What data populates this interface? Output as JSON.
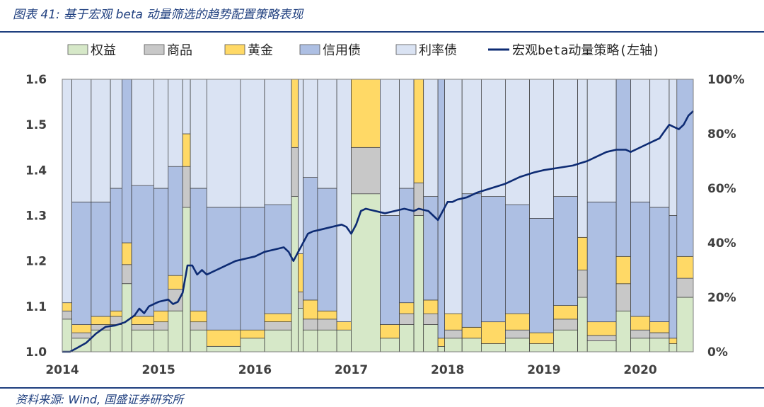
{
  "title": "图表 41: 基于宏观 beta 动量筛选的趋势配置策略表现",
  "source": "资料来源: Wind, 国盛证券研究所",
  "chart_data": {
    "type": "area",
    "x_ticks": [
      "2014",
      "2015",
      "2016",
      "2017",
      "2018",
      "2019",
      "2020"
    ],
    "x_range": [
      2014.0,
      2020.55
    ],
    "y_left": {
      "ticks": [
        "1.0",
        "1.1",
        "1.2",
        "1.3",
        "1.4",
        "1.5",
        "1.6"
      ],
      "range": [
        1.0,
        1.6
      ]
    },
    "y_right": {
      "ticks": [
        "0%",
        "20%",
        "40%",
        "60%",
        "80%",
        "100%"
      ],
      "range": [
        0,
        100
      ]
    },
    "grid": false,
    "legend_position": "top",
    "stacked_series": [
      {
        "name": "权益",
        "color": "#d6e8c8"
      },
      {
        "name": "商品",
        "color": "#c8c8c8"
      },
      {
        "name": "黄金",
        "color": "#ffd966"
      },
      {
        "name": "信用债",
        "color": "#adbfe3"
      },
      {
        "name": "利率债",
        "color": "#dae3f3"
      }
    ],
    "allocation_percent": [
      {
        "start": 2014.0,
        "end": 2014.1,
        "values": [
          12,
          3,
          3,
          0,
          82
        ]
      },
      {
        "start": 2014.1,
        "end": 2014.3,
        "values": [
          5,
          2,
          3,
          45,
          45
        ]
      },
      {
        "start": 2014.3,
        "end": 2014.5,
        "values": [
          8,
          2,
          3,
          42,
          45
        ]
      },
      {
        "start": 2014.5,
        "end": 2014.62,
        "values": [
          10,
          3,
          2,
          45,
          40
        ]
      },
      {
        "start": 2014.62,
        "end": 2014.72,
        "values": [
          25,
          7,
          8,
          60,
          0
        ]
      },
      {
        "start": 2014.72,
        "end": 2014.95,
        "values": [
          8,
          2,
          3,
          48,
          39
        ]
      },
      {
        "start": 2014.95,
        "end": 2015.1,
        "values": [
          8,
          3,
          4,
          45,
          40
        ]
      },
      {
        "start": 2015.1,
        "end": 2015.25,
        "values": [
          15,
          8,
          5,
          40,
          32
        ]
      },
      {
        "start": 2015.25,
        "end": 2015.33,
        "values": [
          53,
          15,
          12,
          0,
          20
        ]
      },
      {
        "start": 2015.33,
        "end": 2015.5,
        "values": [
          8,
          3,
          4,
          45,
          40
        ]
      },
      {
        "start": 2015.5,
        "end": 2015.85,
        "values": [
          2,
          0,
          6,
          45,
          47
        ]
      },
      {
        "start": 2015.85,
        "end": 2016.1,
        "values": [
          5,
          0,
          3,
          45,
          47
        ]
      },
      {
        "start": 2016.1,
        "end": 2016.38,
        "values": [
          8,
          3,
          3,
          40,
          46
        ]
      },
      {
        "start": 2016.38,
        "end": 2016.45,
        "values": [
          57,
          18,
          25,
          0,
          0
        ]
      },
      {
        "start": 2016.45,
        "end": 2016.5,
        "values": [
          16,
          6,
          14,
          0,
          64
        ]
      },
      {
        "start": 2016.5,
        "end": 2016.65,
        "values": [
          8,
          4,
          7,
          45,
          36
        ]
      },
      {
        "start": 2016.65,
        "end": 2016.85,
        "values": [
          8,
          4,
          3,
          45,
          40
        ]
      },
      {
        "start": 2016.85,
        "end": 2017.0,
        "values": [
          8,
          0,
          3,
          0,
          89
        ]
      },
      {
        "start": 2017.0,
        "end": 2017.3,
        "values": [
          58,
          17,
          25,
          0,
          0
        ]
      },
      {
        "start": 2017.3,
        "end": 2017.5,
        "values": [
          5,
          0,
          5,
          40,
          50
        ]
      },
      {
        "start": 2017.5,
        "end": 2017.65,
        "values": [
          10,
          4,
          4,
          42,
          40
        ]
      },
      {
        "start": 2017.65,
        "end": 2017.75,
        "values": [
          50,
          12,
          38,
          0,
          0
        ]
      },
      {
        "start": 2017.75,
        "end": 2017.9,
        "values": [
          10,
          4,
          5,
          38,
          43
        ]
      },
      {
        "start": 2017.9,
        "end": 2017.97,
        "values": [
          2,
          0,
          3,
          95,
          0
        ]
      },
      {
        "start": 2017.97,
        "end": 2018.15,
        "values": [
          5,
          3,
          6,
          0,
          86
        ]
      },
      {
        "start": 2018.15,
        "end": 2018.35,
        "values": [
          5,
          0,
          4,
          49,
          42
        ]
      },
      {
        "start": 2018.35,
        "end": 2018.6,
        "values": [
          3,
          0,
          8,
          46,
          43
        ]
      },
      {
        "start": 2018.6,
        "end": 2018.85,
        "values": [
          5,
          3,
          6,
          40,
          46
        ]
      },
      {
        "start": 2018.85,
        "end": 2019.1,
        "values": [
          3,
          0,
          4,
          42,
          51
        ]
      },
      {
        "start": 2019.1,
        "end": 2019.35,
        "values": [
          8,
          4,
          5,
          40,
          43
        ]
      },
      {
        "start": 2019.35,
        "end": 2019.45,
        "values": [
          20,
          10,
          12,
          0,
          58
        ]
      },
      {
        "start": 2019.45,
        "end": 2019.75,
        "values": [
          4,
          2,
          5,
          44,
          45
        ]
      },
      {
        "start": 2019.75,
        "end": 2019.9,
        "values": [
          15,
          10,
          10,
          65,
          0
        ]
      },
      {
        "start": 2019.9,
        "end": 2020.1,
        "values": [
          5,
          3,
          5,
          42,
          45
        ]
      },
      {
        "start": 2020.1,
        "end": 2020.3,
        "values": [
          5,
          2,
          4,
          42,
          47
        ]
      },
      {
        "start": 2020.3,
        "end": 2020.38,
        "values": [
          3,
          0,
          2,
          45,
          50
        ]
      },
      {
        "start": 2020.38,
        "end": 2020.55,
        "values": [
          20,
          7,
          8,
          65,
          0
        ]
      }
    ],
    "line_series": {
      "name": "宏观beta动量策略(左轴)",
      "color": "#0d2b73",
      "axis": "left",
      "points": [
        [
          2014.0,
          1.0
        ],
        [
          2014.08,
          1.0
        ],
        [
          2014.15,
          1.008
        ],
        [
          2014.25,
          1.02
        ],
        [
          2014.35,
          1.04
        ],
        [
          2014.45,
          1.055
        ],
        [
          2014.55,
          1.058
        ],
        [
          2014.65,
          1.065
        ],
        [
          2014.75,
          1.08
        ],
        [
          2014.8,
          1.095
        ],
        [
          2014.85,
          1.085
        ],
        [
          2014.9,
          1.1
        ],
        [
          2014.95,
          1.105
        ],
        [
          2015.0,
          1.11
        ],
        [
          2015.1,
          1.115
        ],
        [
          2015.15,
          1.105
        ],
        [
          2015.2,
          1.11
        ],
        [
          2015.25,
          1.13
        ],
        [
          2015.3,
          1.19
        ],
        [
          2015.35,
          1.19
        ],
        [
          2015.4,
          1.17
        ],
        [
          2015.45,
          1.18
        ],
        [
          2015.5,
          1.17
        ],
        [
          2015.6,
          1.18
        ],
        [
          2015.7,
          1.19
        ],
        [
          2015.8,
          1.2
        ],
        [
          2015.9,
          1.205
        ],
        [
          2016.0,
          1.21
        ],
        [
          2016.1,
          1.22
        ],
        [
          2016.2,
          1.225
        ],
        [
          2016.3,
          1.23
        ],
        [
          2016.35,
          1.22
        ],
        [
          2016.4,
          1.2
        ],
        [
          2016.45,
          1.22
        ],
        [
          2016.5,
          1.24
        ],
        [
          2016.55,
          1.26
        ],
        [
          2016.6,
          1.265
        ],
        [
          2016.7,
          1.27
        ],
        [
          2016.8,
          1.275
        ],
        [
          2016.9,
          1.28
        ],
        [
          2016.95,
          1.275
        ],
        [
          2017.0,
          1.26
        ],
        [
          2017.05,
          1.28
        ],
        [
          2017.1,
          1.31
        ],
        [
          2017.15,
          1.315
        ],
        [
          2017.25,
          1.31
        ],
        [
          2017.35,
          1.305
        ],
        [
          2017.45,
          1.31
        ],
        [
          2017.55,
          1.315
        ],
        [
          2017.65,
          1.31
        ],
        [
          2017.7,
          1.315
        ],
        [
          2017.8,
          1.31
        ],
        [
          2017.85,
          1.3
        ],
        [
          2017.9,
          1.29
        ],
        [
          2017.95,
          1.31
        ],
        [
          2018.0,
          1.33
        ],
        [
          2018.05,
          1.33
        ],
        [
          2018.1,
          1.335
        ],
        [
          2018.2,
          1.34
        ],
        [
          2018.3,
          1.35
        ],
        [
          2018.45,
          1.36
        ],
        [
          2018.6,
          1.37
        ],
        [
          2018.75,
          1.385
        ],
        [
          2018.9,
          1.395
        ],
        [
          2019.0,
          1.4
        ],
        [
          2019.15,
          1.405
        ],
        [
          2019.3,
          1.41
        ],
        [
          2019.45,
          1.42
        ],
        [
          2019.55,
          1.43
        ],
        [
          2019.65,
          1.44
        ],
        [
          2019.75,
          1.445
        ],
        [
          2019.85,
          1.445
        ],
        [
          2019.9,
          1.44
        ],
        [
          2019.95,
          1.445
        ],
        [
          2020.05,
          1.455
        ],
        [
          2020.15,
          1.465
        ],
        [
          2020.2,
          1.47
        ],
        [
          2020.25,
          1.485
        ],
        [
          2020.3,
          1.5
        ],
        [
          2020.35,
          1.495
        ],
        [
          2020.4,
          1.49
        ],
        [
          2020.45,
          1.5
        ],
        [
          2020.5,
          1.52
        ],
        [
          2020.55,
          1.53
        ]
      ]
    }
  }
}
